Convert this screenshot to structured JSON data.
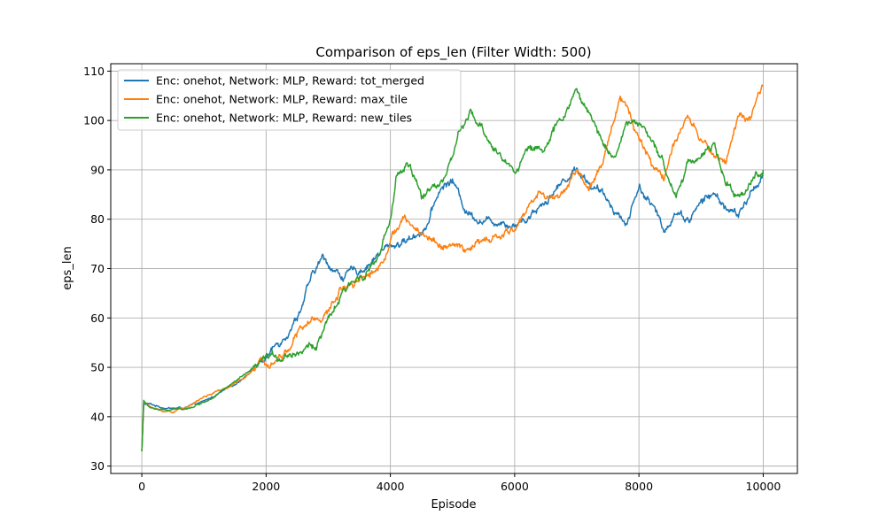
{
  "chart_data": {
    "type": "line",
    "title": "Comparison of eps_len (Filter Width: 500)",
    "xlabel": "Episode",
    "ylabel": "eps_len",
    "xlim": [
      -500,
      10550
    ],
    "ylim": [
      28.5,
      111.5
    ],
    "xticks": [
      0,
      2000,
      4000,
      6000,
      8000,
      10000
    ],
    "yticks": [
      30,
      40,
      50,
      60,
      70,
      80,
      90,
      100,
      110
    ],
    "grid": true,
    "legend_position": "upper-left",
    "series": [
      {
        "name": "Enc: onehot, Network: MLP, Reward: tot_merged",
        "color": "#1f77b4",
        "points": [
          [
            0,
            33
          ],
          [
            30,
            42.5
          ],
          [
            100,
            42.6
          ],
          [
            300,
            42.0
          ],
          [
            500,
            41.7
          ],
          [
            700,
            41.8
          ],
          [
            1000,
            43.0
          ],
          [
            1500,
            46.5
          ],
          [
            2000,
            52.0
          ],
          [
            2200,
            55.0
          ],
          [
            2500,
            60.5
          ],
          [
            2700,
            67.0
          ],
          [
            2900,
            72.0
          ],
          [
            3000,
            71.0
          ],
          [
            3200,
            68.5
          ],
          [
            3500,
            69.5
          ],
          [
            3800,
            73.0
          ],
          [
            4000,
            74.5
          ],
          [
            4300,
            76.0
          ],
          [
            4600,
            79.0
          ],
          [
            4800,
            86.0
          ],
          [
            5000,
            88.0
          ],
          [
            5200,
            82.0
          ],
          [
            5400,
            80.5
          ],
          [
            5600,
            79.5
          ],
          [
            5800,
            80.0
          ],
          [
            6000,
            79.0
          ],
          [
            6200,
            80.5
          ],
          [
            6500,
            84.0
          ],
          [
            6800,
            88.0
          ],
          [
            7000,
            90.5
          ],
          [
            7200,
            87.5
          ],
          [
            7400,
            85.0
          ],
          [
            7600,
            82.5
          ],
          [
            7800,
            79.0
          ],
          [
            8000,
            87.0
          ],
          [
            8200,
            83.0
          ],
          [
            8400,
            77.5
          ],
          [
            8600,
            82.0
          ],
          [
            8800,
            80.0
          ],
          [
            9000,
            83.5
          ],
          [
            9200,
            85.0
          ],
          [
            9400,
            82.5
          ],
          [
            9600,
            80.5
          ],
          [
            9800,
            85.0
          ],
          [
            10000,
            89.5
          ]
        ]
      },
      {
        "name": "Enc: onehot, Network: MLP, Reward: max_tile",
        "color": "#ff7f0e",
        "points": [
          [
            0,
            33
          ],
          [
            30,
            43.0
          ],
          [
            100,
            42.3
          ],
          [
            300,
            41.2
          ],
          [
            500,
            41.0
          ],
          [
            800,
            42.5
          ],
          [
            1000,
            44.0
          ],
          [
            1500,
            46.5
          ],
          [
            2000,
            51.5
          ],
          [
            2300,
            53.0
          ],
          [
            2500,
            57.0
          ],
          [
            2800,
            60.0
          ],
          [
            3000,
            61.0
          ],
          [
            3200,
            66.0
          ],
          [
            3500,
            68.5
          ],
          [
            3800,
            70.0
          ],
          [
            4000,
            76.0
          ],
          [
            4200,
            80.0
          ],
          [
            4400,
            78.0
          ],
          [
            4600,
            76.5
          ],
          [
            4800,
            75.0
          ],
          [
            5000,
            74.5
          ],
          [
            5200,
            73.5
          ],
          [
            5400,
            75.0
          ],
          [
            5600,
            75.5
          ],
          [
            5800,
            76.5
          ],
          [
            6000,
            78.0
          ],
          [
            6200,
            82.0
          ],
          [
            6400,
            86.0
          ],
          [
            6600,
            84.0
          ],
          [
            6800,
            86.0
          ],
          [
            7000,
            90.0
          ],
          [
            7200,
            86.0
          ],
          [
            7400,
            90.0
          ],
          [
            7600,
            101.0
          ],
          [
            7700,
            105.0
          ],
          [
            7800,
            103.0
          ],
          [
            8000,
            97.0
          ],
          [
            8200,
            91.0
          ],
          [
            8400,
            89.0
          ],
          [
            8600,
            96.0
          ],
          [
            8800,
            100.0
          ],
          [
            9000,
            96.0
          ],
          [
            9200,
            93.0
          ],
          [
            9400,
            92.0
          ],
          [
            9600,
            101.0
          ],
          [
            9800,
            100.0
          ],
          [
            10000,
            107.0
          ]
        ]
      },
      {
        "name": "Enc: onehot, Network: MLP, Reward: new_tiles",
        "color": "#2ca02c",
        "points": [
          [
            0,
            33
          ],
          [
            30,
            43.3
          ],
          [
            100,
            42.0
          ],
          [
            300,
            41.3
          ],
          [
            500,
            41.3
          ],
          [
            800,
            42.0
          ],
          [
            1000,
            43.0
          ],
          [
            1500,
            47.0
          ],
          [
            2000,
            51.5
          ],
          [
            2300,
            52.5
          ],
          [
            2500,
            53.5
          ],
          [
            2800,
            54.5
          ],
          [
            3000,
            59.0
          ],
          [
            3200,
            64.0
          ],
          [
            3500,
            68.5
          ],
          [
            3800,
            72.0
          ],
          [
            4000,
            79.0
          ],
          [
            4100,
            89.0
          ],
          [
            4300,
            91.0
          ],
          [
            4500,
            84.0
          ],
          [
            4700,
            87.0
          ],
          [
            4900,
            89.0
          ],
          [
            5100,
            97.0
          ],
          [
            5300,
            101.0
          ],
          [
            5600,
            96.0
          ],
          [
            5800,
            92.0
          ],
          [
            6000,
            90.0
          ],
          [
            6200,
            94.0
          ],
          [
            6500,
            95.0
          ],
          [
            6700,
            99.0
          ],
          [
            7000,
            106.0
          ],
          [
            7200,
            101.0
          ],
          [
            7400,
            96.0
          ],
          [
            7600,
            93.0
          ],
          [
            7800,
            99.0
          ],
          [
            8000,
            100.0
          ],
          [
            8200,
            95.0
          ],
          [
            8400,
            91.0
          ],
          [
            8600,
            85.0
          ],
          [
            8800,
            92.0
          ],
          [
            9000,
            93.0
          ],
          [
            9200,
            95.0
          ],
          [
            9400,
            87.0
          ],
          [
            9600,
            84.0
          ],
          [
            9800,
            88.0
          ],
          [
            10000,
            90.0
          ]
        ]
      }
    ]
  }
}
